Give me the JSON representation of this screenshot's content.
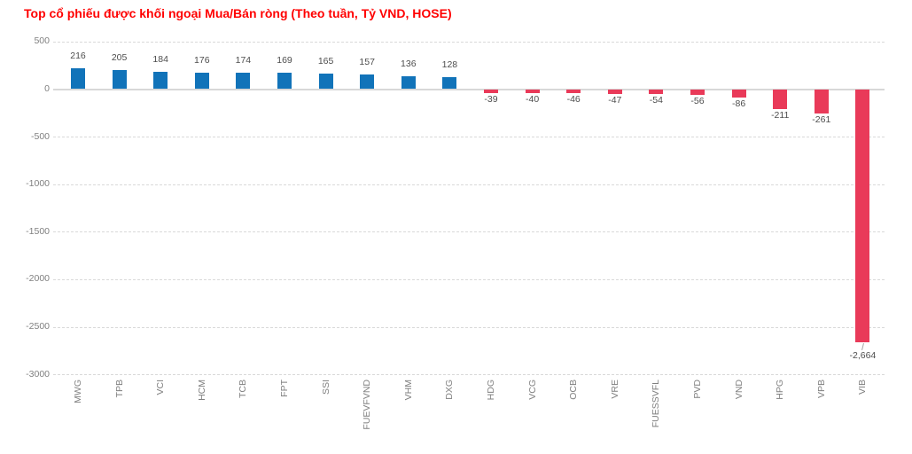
{
  "chart_data": {
    "type": "bar",
    "title": "Top cổ phiếu được khối ngoại Mua/Bán ròng (Theo tuần, Tỷ VND, HOSE)",
    "categories": [
      "MWG",
      "TPB",
      "VCI",
      "HCM",
      "TCB",
      "FPT",
      "SSI",
      "FUEVFVND",
      "VHM",
      "DXG",
      "HDG",
      "VCG",
      "OCB",
      "VRE",
      "FUESSVFL",
      "PVD",
      "VND",
      "HPG",
      "VPB",
      "VIB"
    ],
    "values": [
      216,
      205,
      184,
      176,
      174,
      169,
      165,
      157,
      136,
      128,
      -39,
      -40,
      -46,
      -47,
      -54,
      -56,
      -86,
      -211,
      -261,
      -2664
    ],
    "value_labels": [
      "216",
      "205",
      "184",
      "176",
      "174",
      "169",
      "165",
      "157",
      "136",
      "128",
      "-39",
      "-40",
      "-46",
      "-47",
      "-54",
      "-56",
      "-86",
      "-211",
      "-261",
      "-2,664"
    ],
    "yticks": [
      500,
      0,
      -500,
      -1000,
      -1500,
      -2000,
      -2500,
      -3000
    ],
    "ylim": [
      -3000,
      500
    ],
    "grid": true,
    "legend_position": "none",
    "unit": "Tỷ VND",
    "exchange": "HOSE",
    "period": "Theo tuần"
  },
  "colors": {
    "title": "#FF0000",
    "positive_bar": "#1173B9",
    "negative_bar": "#E93A59",
    "gridline": "#D9D9D9",
    "zero_line": "#D8D8D8",
    "axis_text": "#808080",
    "value_text": "#4D4D4D",
    "callout_line": "#A6A6A6",
    "background": "#FFFFFF"
  }
}
